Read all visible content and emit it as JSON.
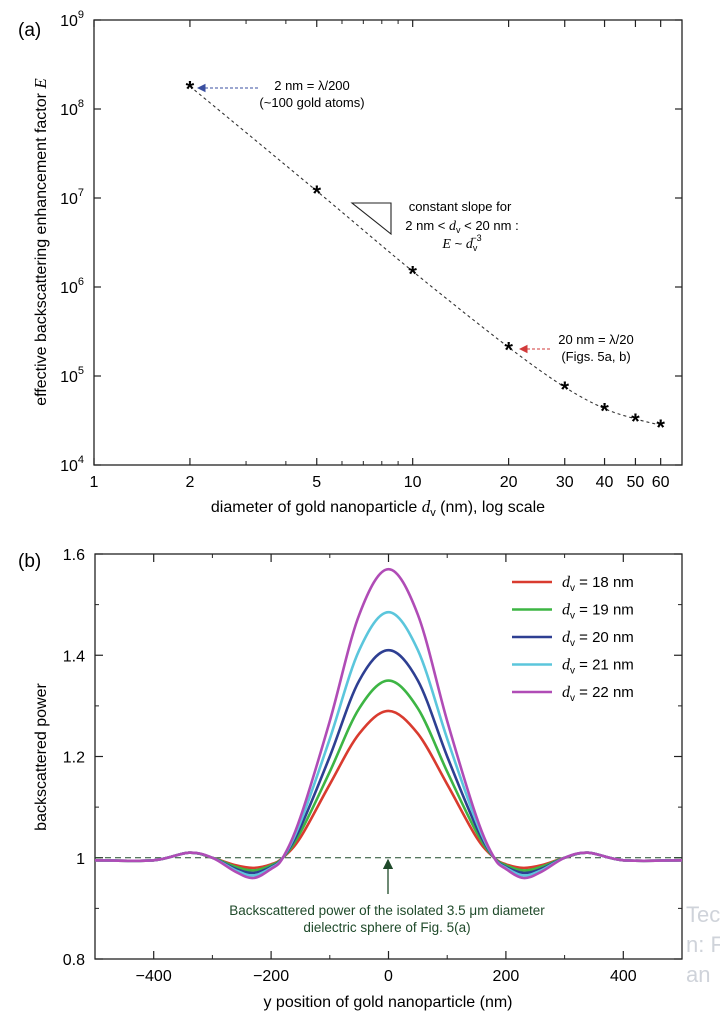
{
  "chart_data": [
    {
      "type": "scatter",
      "panel_label": "(a)",
      "xlabel_main": "diameter of gold nanoparticle ",
      "xlabel_var": "d",
      "xlabel_sub": "v",
      "xlabel_tail": " (nm), log scale",
      "ylabel_main": "effective backscattering enhancement factor ",
      "ylabel_var": "E",
      "x_scale": "log",
      "y_scale": "log",
      "xlim": [
        1,
        70
      ],
      "ylim": [
        10000,
        1000000000
      ],
      "x_ticks": [
        1,
        2,
        5,
        10,
        20,
        30,
        40,
        50,
        60
      ],
      "x_tick_labels": [
        "1",
        "2",
        "5",
        "10",
        "20",
        "30",
        "40",
        "50",
        "60"
      ],
      "y_ticks": [
        10000,
        100000,
        1000000,
        10000000,
        100000000,
        1000000000
      ],
      "y_tick_mantissa": [
        "10",
        "10",
        "10",
        "10",
        "10",
        "10"
      ],
      "y_tick_exponent": [
        "4",
        "5",
        "6",
        "7",
        "8",
        "9"
      ],
      "points": {
        "x": [
          2,
          5,
          10,
          20,
          30,
          40,
          50,
          60
        ],
        "y": [
          180000000,
          12000000,
          1500000,
          210000,
          75000,
          43000,
          33000,
          28000
        ],
        "marker": "*"
      },
      "marker_symbol": "*",
      "annotations": {
        "a1_line1": "2 nm = λ/200",
        "a1_line2": "(~100 gold atoms)",
        "a1_color": "#3a4fa0",
        "a2_line1": "constant slope for",
        "a2_line2_pre": "2 nm < ",
        "a2_line2_var": "d",
        "a2_line2_sub": "v",
        "a2_line2_post": " < 20 nm :",
        "a2_line3_E": "E",
        "a2_line3_mid": " ~ ",
        "a2_line3_var": "d",
        "a2_line3_sub": "v",
        "a2_line3_exp": "−3",
        "a3_line1": "20 nm = λ/20",
        "a3_line2": "(Figs. 5a, b)",
        "a3_color": "#d23a3a"
      }
    },
    {
      "type": "line",
      "panel_label": "(b)",
      "xlabel": "y position of gold nanoparticle (nm)",
      "ylabel": "backscattered power",
      "xlim": [
        -500,
        500
      ],
      "ylim": [
        0.8,
        1.6
      ],
      "x_ticks": [
        -400,
        -200,
        0,
        200,
        400
      ],
      "x_tick_labels": [
        "−400",
        "−200",
        "0",
        "200",
        "400"
      ],
      "y_ticks": [
        0.8,
        1.0,
        1.2,
        1.4,
        1.6
      ],
      "y_tick_labels": [
        "0.8",
        "1",
        "1.2",
        "1.4",
        "1.6"
      ],
      "baseline": 1.0,
      "x": [
        -500,
        -400,
        -340,
        -300,
        -260,
        -230,
        -200,
        -180,
        -150,
        -100,
        -50,
        0,
        50,
        100,
        150,
        180,
        200,
        230,
        260,
        300,
        340,
        400,
        500
      ],
      "series": [
        {
          "name_var": "d",
          "name_sub": "v",
          "name_value": " = 18 nm",
          "color": "#d93b2f",
          "values": [
            0.995,
            0.995,
            1.01,
            1.0,
            0.985,
            0.98,
            0.987,
            1.0,
            1.04,
            1.145,
            1.245,
            1.29,
            1.245,
            1.145,
            1.04,
            1.0,
            0.987,
            0.98,
            0.985,
            1.0,
            1.01,
            0.995,
            0.995
          ]
        },
        {
          "name_var": "d",
          "name_sub": "v",
          "name_value": " = 19 nm",
          "color": "#3db544",
          "values": [
            0.995,
            0.995,
            1.01,
            1.0,
            0.982,
            0.975,
            0.985,
            1.0,
            1.05,
            1.17,
            1.295,
            1.35,
            1.295,
            1.17,
            1.05,
            1.0,
            0.985,
            0.975,
            0.982,
            1.0,
            1.01,
            0.995,
            0.995
          ]
        },
        {
          "name_var": "d",
          "name_sub": "v",
          "name_value": " = 20 nm",
          "color": "#2e3f92",
          "values": [
            0.995,
            0.995,
            1.01,
            1.0,
            0.978,
            0.97,
            0.982,
            1.0,
            1.06,
            1.2,
            1.35,
            1.41,
            1.35,
            1.2,
            1.06,
            1.0,
            0.982,
            0.97,
            0.978,
            1.0,
            1.01,
            0.995,
            0.995
          ]
        },
        {
          "name_var": "d",
          "name_sub": "v",
          "name_value": " = 21 nm",
          "color": "#5bc6dc",
          "values": [
            0.995,
            0.995,
            1.01,
            1.0,
            0.975,
            0.965,
            0.98,
            1.0,
            1.07,
            1.235,
            1.41,
            1.485,
            1.41,
            1.235,
            1.07,
            1.0,
            0.98,
            0.965,
            0.975,
            1.0,
            1.01,
            0.995,
            0.995
          ]
        },
        {
          "name_var": "d",
          "name_sub": "v",
          "name_value": " = 22 nm",
          "color": "#b04cb6",
          "values": [
            0.995,
            0.995,
            1.01,
            1.0,
            0.972,
            0.96,
            0.978,
            1.0,
            1.08,
            1.27,
            1.48,
            1.57,
            1.48,
            1.27,
            1.08,
            1.0,
            0.978,
            0.96,
            0.972,
            1.0,
            1.01,
            0.995,
            0.995
          ]
        }
      ],
      "annotation_line1": "Backscattered power of the isolated 3.5 μm diameter",
      "annotation_line2": "dielectric sphere of Fig. 5(a)",
      "annotation_color": "#1f4a2a"
    }
  ],
  "watermark": {
    "line1": "Tec",
    "line2": "n: F",
    "line3": "an"
  }
}
